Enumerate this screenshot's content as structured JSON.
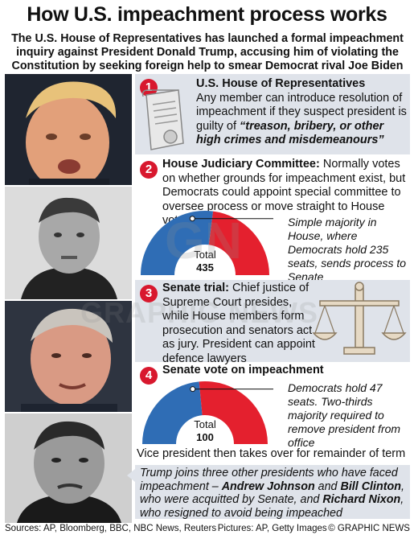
{
  "title": "How U.S. impeachment process works",
  "subtitle": "The U.S. House of Representatives has launched a formal impeachment inquiry against President Donald Trump, accusing him of violating the Constitution by seeking foreign help to smear Democrat rival Joe Biden",
  "steps": [
    {
      "number": "1",
      "heading": "U.S. House of Representatives",
      "body": "Any member can introduce resolution of impeachment if they suspect president is guilty of",
      "quote": "“treason, bribery, or other high crimes and misdemeanours”"
    },
    {
      "number": "2",
      "heading": "House Judiciary Committee:",
      "body": " Normally votes on whether grounds for impeachment exist, but Democrats could appoint special committee to oversee process or move straight to House vote",
      "chart_total_label": "Total",
      "chart_total_value": "435",
      "annotation": "Simple majority in House, where Democrats hold 235 seats, sends process to Senate"
    },
    {
      "number": "3",
      "heading": "Senate trial:",
      "body": " Chief justice of Supreme Court presides, while House members form prosecution and senators act as jury. President can appoint defence lawyers"
    },
    {
      "number": "4",
      "heading": "Senate vote on impeachment",
      "chart_total_label": "Total",
      "chart_total_value": "100",
      "annotation": "Democrats hold 47 seats. Two-thirds majority required to remove president from office",
      "footer": "Vice president then takes over for remainder of term"
    }
  ],
  "note": {
    "t1": "Trump joins three other presidents who have faced impeachment – ",
    "n1": "Andrew Johnson",
    "t2": " and ",
    "n2": "Bill Clinton",
    "t3": ", who were acquitted by Senate, and ",
    "n3": "Richard Nixon",
    "t4": ", who resigned to avoid being impeached"
  },
  "footer": {
    "sources": "Sources: AP, Bloomberg, BBC, NBC News, Reuters",
    "pictures": "Pictures: AP, Getty Images",
    "credit": "© GRAPHIC NEWS"
  },
  "watermark": {
    "logo": "GN",
    "text": "GRAPHIC NEWS"
  },
  "chart_data": [
    {
      "type": "pie",
      "title": "",
      "categories": [
        "Democrats",
        "Others"
      ],
      "values": [
        235,
        200
      ],
      "total": 435,
      "colors": [
        "#2f6db5",
        "#e4202e"
      ]
    },
    {
      "type": "pie",
      "title": "",
      "categories": [
        "Democrats",
        "Others"
      ],
      "values": [
        47,
        53
      ],
      "total": 100,
      "colors": [
        "#2f6db5",
        "#e4202e"
      ]
    }
  ],
  "colors": {
    "accent_red": "#d8182e",
    "panel_grey": "#dfe3ea",
    "blue": "#2f6db5",
    "red": "#e4202e"
  }
}
